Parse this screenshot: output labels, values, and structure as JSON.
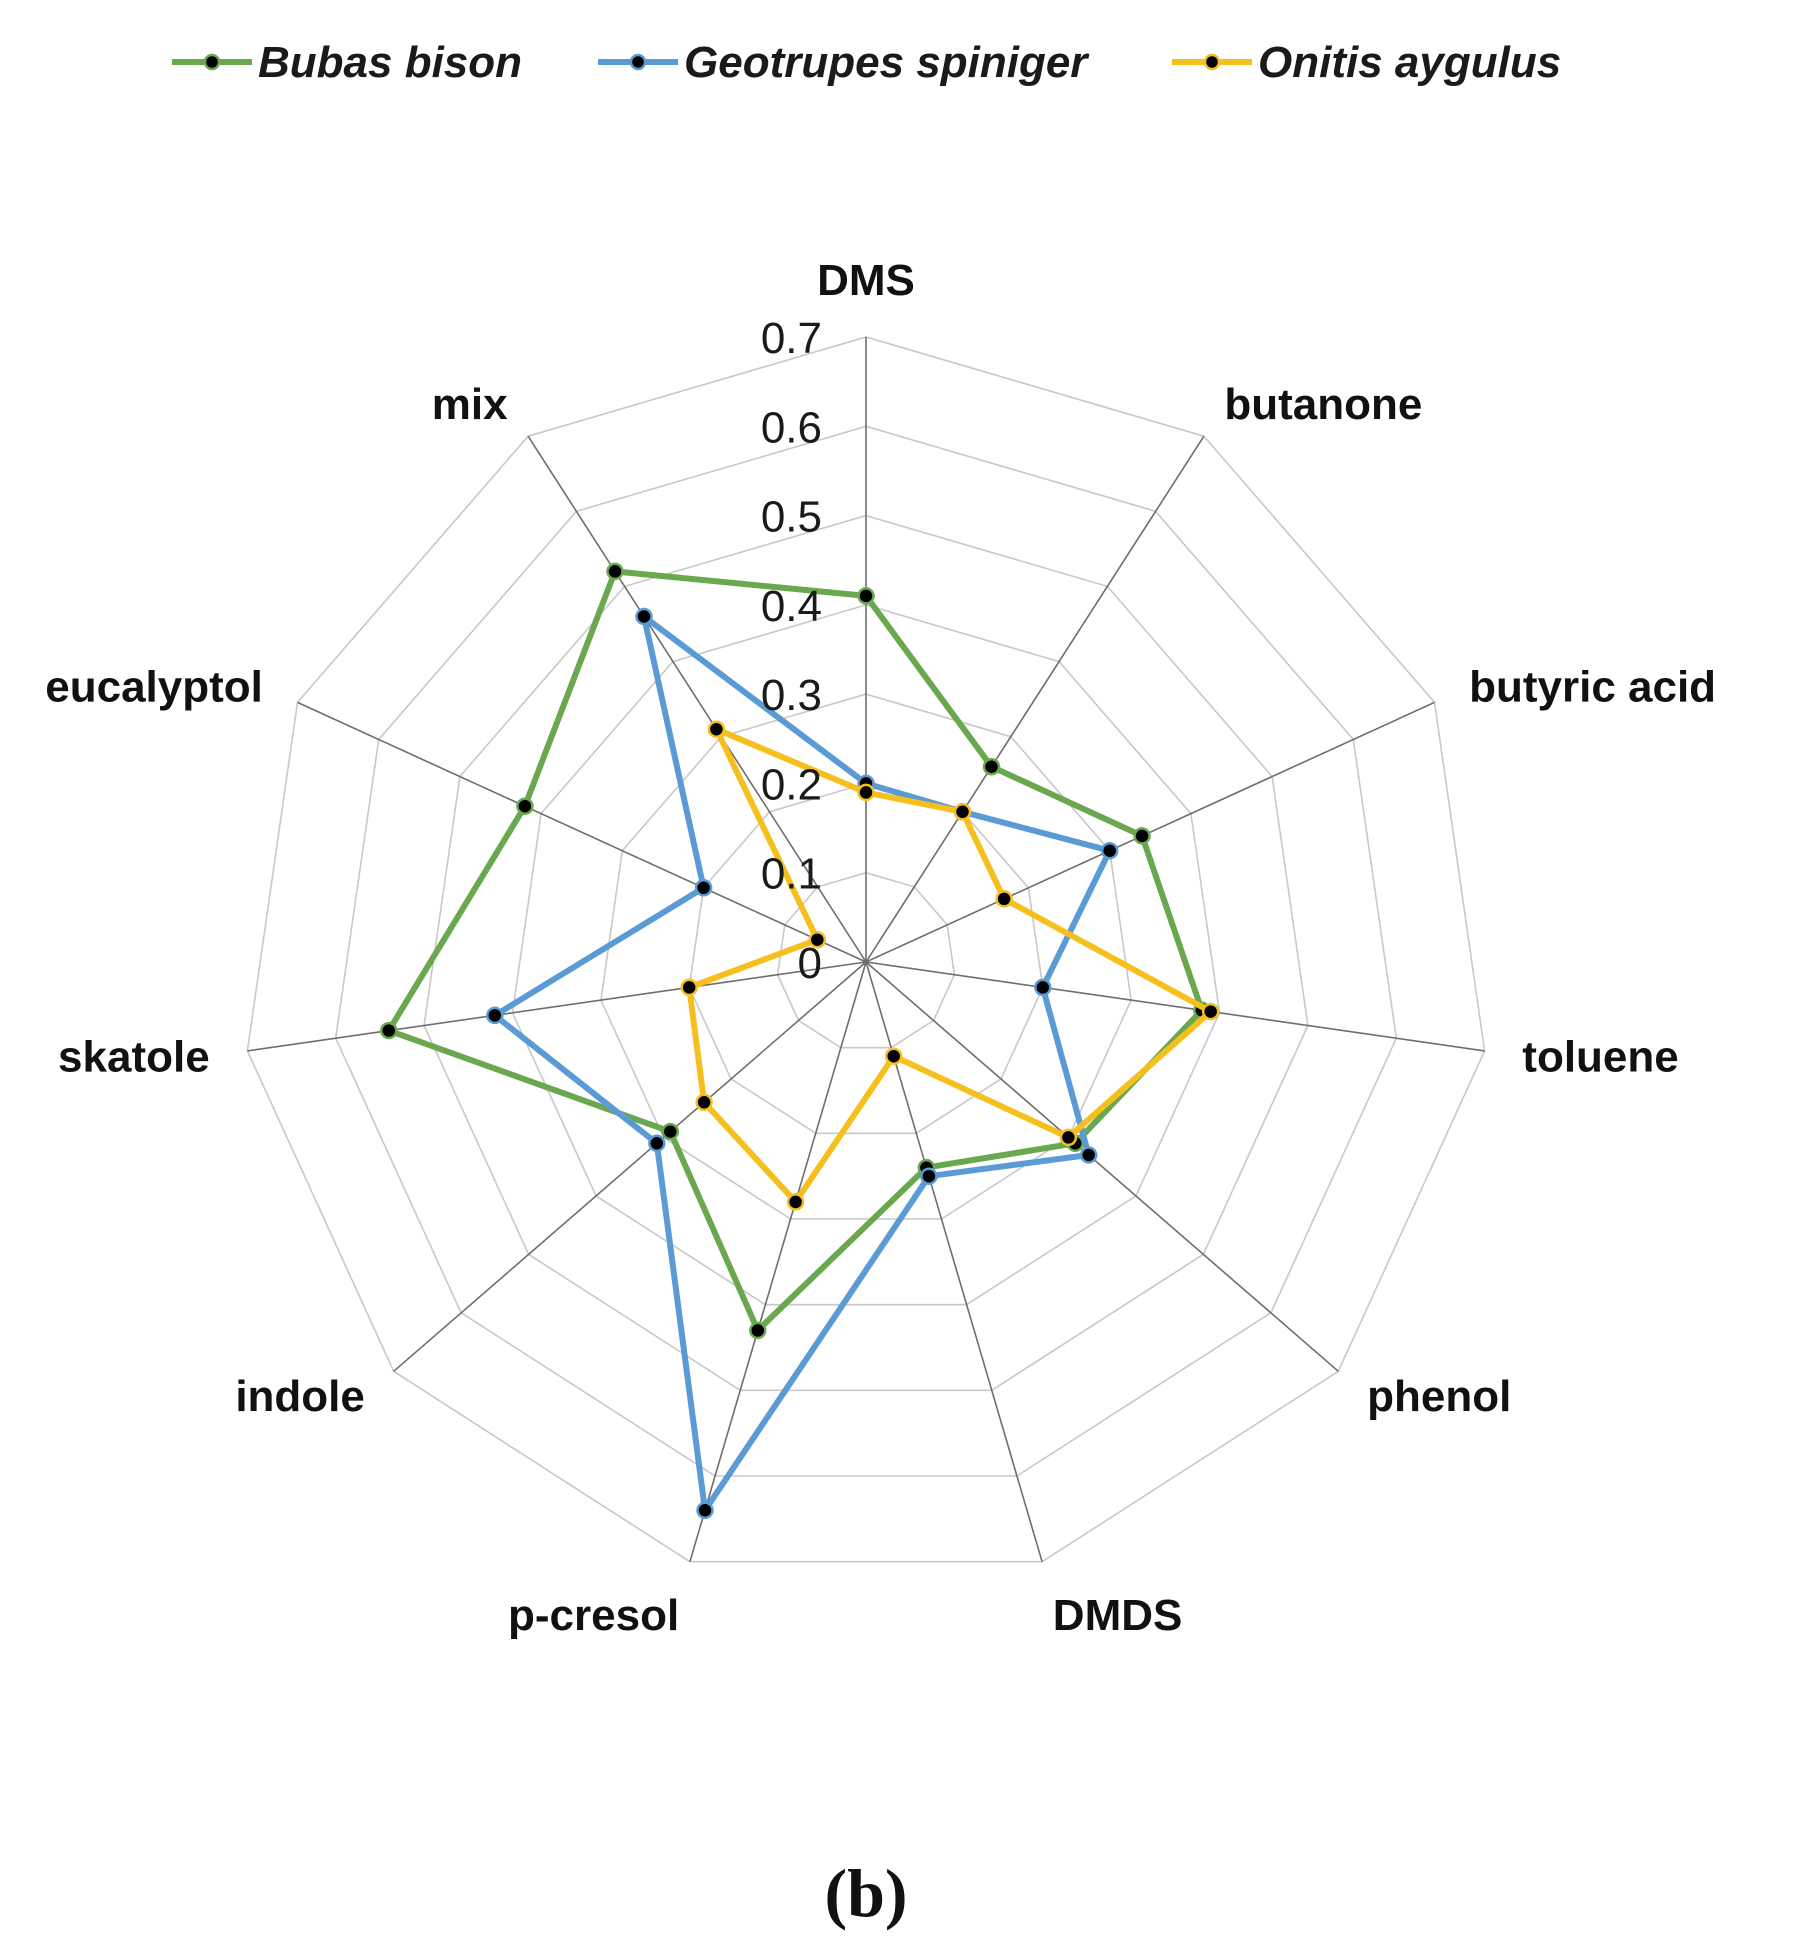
{
  "chart_data": {
    "type": "radar",
    "axes": [
      "DMS",
      "butanone",
      "butyric acid",
      "toluene",
      "phenol",
      "DMDS",
      "p-cresol",
      "indole",
      "skatole",
      "eucalyptol",
      "mix"
    ],
    "rlim": [
      0,
      0.7
    ],
    "ticks": [
      "0",
      "0.1",
      "0.2",
      "0.3",
      "0.4",
      "0.5",
      "0.6",
      "0.7"
    ],
    "grid": true,
    "legend_position": "top",
    "panel_label": "(b)",
    "series": [
      {
        "name": "Bubas bison",
        "color": "#6aa84f",
        "values": [
          0.41,
          0.26,
          0.34,
          0.38,
          0.31,
          0.24,
          0.43,
          0.29,
          0.54,
          0.42,
          0.52
        ]
      },
      {
        "name": "Geotrupes spiniger",
        "color": "#5b9bd5",
        "values": [
          0.2,
          0.2,
          0.3,
          0.2,
          0.33,
          0.25,
          0.64,
          0.31,
          0.42,
          0.2,
          0.46
        ]
      },
      {
        "name": "Onitis aygulus",
        "color": "#f5c01d",
        "values": [
          0.19,
          0.2,
          0.17,
          0.39,
          0.3,
          0.11,
          0.28,
          0.24,
          0.2,
          0.06,
          0.31
        ]
      }
    ]
  }
}
